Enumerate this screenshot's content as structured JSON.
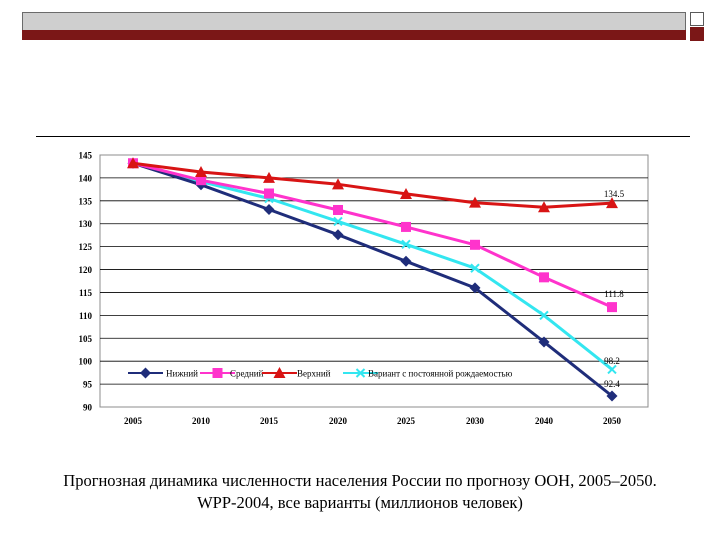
{
  "chart_data": {
    "type": "line",
    "categories": [
      "2005",
      "2010",
      "2015",
      "2020",
      "2025",
      "2030",
      "2040",
      "2050"
    ],
    "ylim": [
      90,
      145
    ],
    "yticks": [
      "145",
      "140",
      "135",
      "130",
      "125",
      "120",
      "115",
      "110",
      "105",
      "100",
      "95",
      "90"
    ],
    "grid": true,
    "series": [
      {
        "name": "Нижний",
        "color": "#1f2d7a",
        "marker": "diamond",
        "values": [
          143.2,
          138.5,
          133.1,
          127.6,
          121.8,
          116.0,
          104.2,
          92.4
        ]
      },
      {
        "name": "Средний",
        "color": "#ff33cc",
        "marker": "square",
        "values": [
          143.2,
          139.5,
          136.6,
          133.0,
          129.3,
          125.4,
          118.3,
          111.8
        ]
      },
      {
        "name": "Верхний",
        "color": "#d81414",
        "marker": "triangle",
        "values": [
          143.2,
          141.3,
          140.0,
          138.6,
          136.5,
          134.6,
          133.6,
          134.5
        ]
      },
      {
        "name": "Вариант с постоянной рождаемостью",
        "color": "#33e6f0",
        "marker": "x",
        "values": [
          143.2,
          139.2,
          135.5,
          130.5,
          125.5,
          120.3,
          110.0,
          98.2
        ]
      }
    ],
    "data_labels": [
      "134.5",
      "111.8",
      "98.2",
      "92.4"
    ]
  },
  "caption": {
    "line1": "Прогнозная динамика численности населения России по прогнозу ООН, 2005–2050.",
    "line2": "WPP-2004, все варианты (миллионов человек)"
  }
}
